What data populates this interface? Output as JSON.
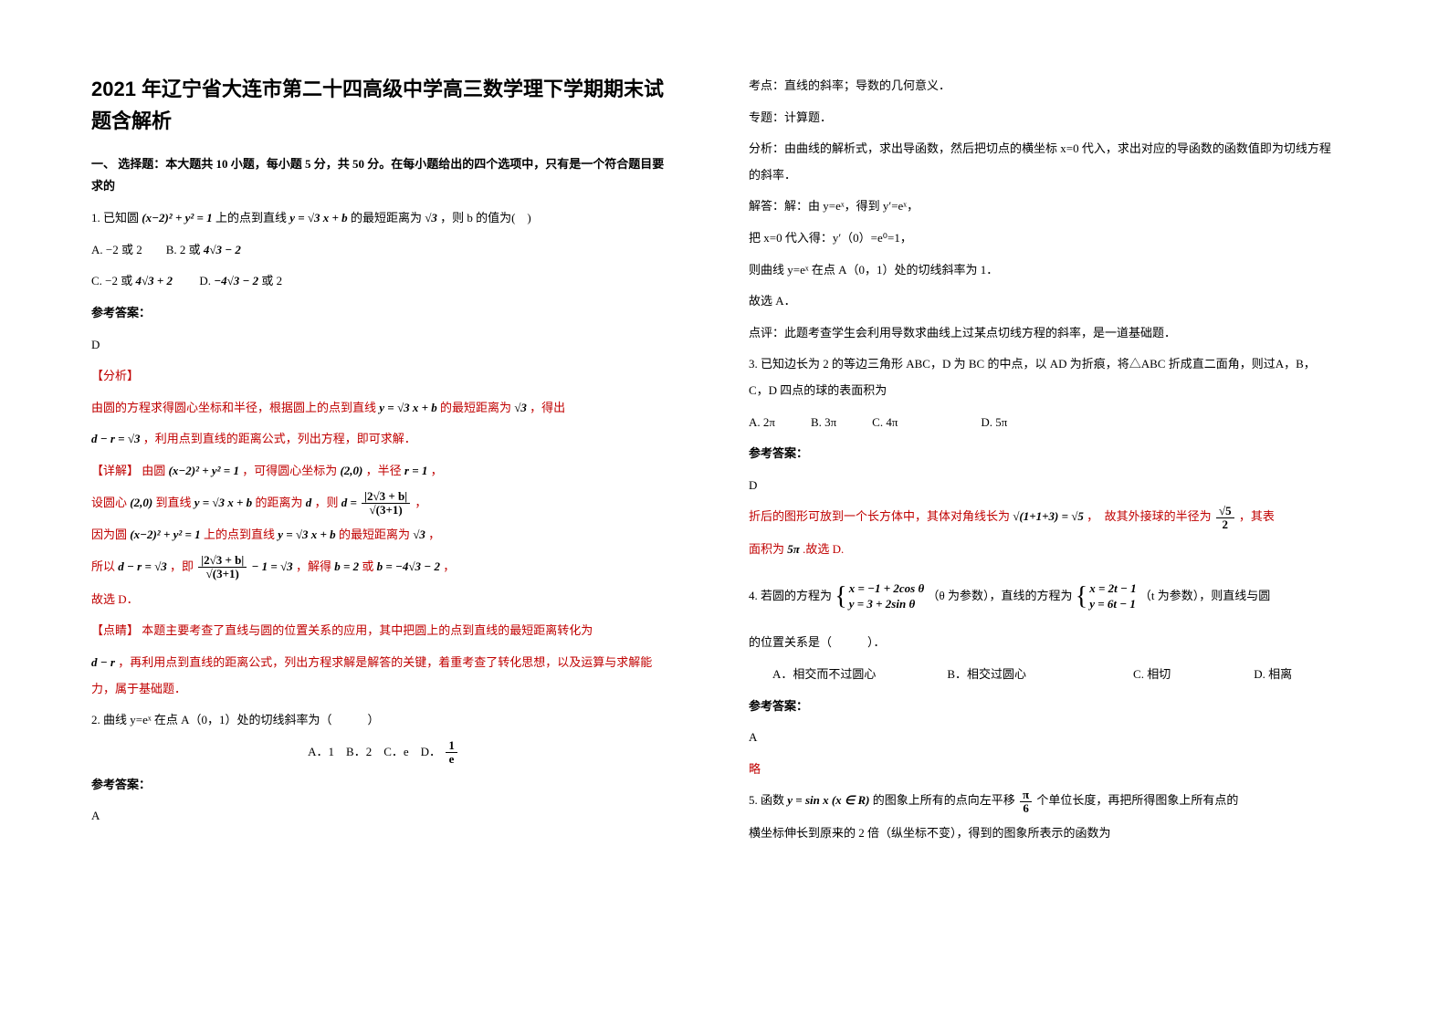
{
  "title": "2021 年辽宁省大连市第二十四高级中学高三数学理下学期期末试题含解析",
  "section1_head": "一、 选择题：本大题共 10 小题，每小题 5 分，共 50 分。在每小题给出的四个选项中，只有是一个符合题目要求的",
  "q1": {
    "stem_a": "1. 已知圆",
    "eq1": "(x−2)² + y² = 1",
    "stem_b": "上的点到直线",
    "eq2": "y = √3 x + b",
    "stem_c": "的最短距离为",
    "eq3": "√3",
    "stem_d": "，则 b 的值为(　)",
    "optA": "A. −2 或 2　　B. 2 或",
    "optA_eq": "4√3 − 2",
    "optC": "C. −2 或",
    "optC_eq": "4√3 + 2",
    "optD": "　　D.",
    "optD_eq": "−4√3 − 2",
    "optD_tail": " 或 2",
    "ans_label": "参考答案：",
    "ans": "D",
    "analysis_label": "【分析】",
    "ana_a": "由圆的方程求得圆心坐标和半径，根据圆上的点到直线",
    "ana_eq1": "y = √3 x + b",
    "ana_b": "的最短距离为",
    "ana_eq2": "√3",
    "ana_c": "，得出",
    "ana_eq3": "d − r = √3",
    "ana_d": "，利用点到直线的距离公式，列出方程，即可求解．",
    "detail_label": "【详解】",
    "det_a": "由圆",
    "det_eq1": "(x−2)² + y² = 1",
    "det_b": "，可得圆心坐标为",
    "det_eq2": "(2,0)",
    "det_c": "，半径",
    "det_eq3": "r = 1",
    "det_d": "，",
    "line2_a": "设圆心",
    "line2_eq1": "(2,0)",
    "line2_b": "到直线",
    "line2_eq2": "y = √3 x + b",
    "line2_c": "的距离为",
    "line2_eq3": "d",
    "line2_d": "，则",
    "frac1_num": "|2√3 + b|",
    "frac1_den": "√(3+1)",
    "line2_e": "，",
    "line3_a": "因为圆",
    "line3_b": "上的点到直线",
    "line3_c": "的最短距离为",
    "line3_d": "，",
    "line4_a": "所以",
    "line4_eq1": "d − r = √3",
    "line4_b": "，即",
    "frac2_num": "|2√3 + b|",
    "frac2_den": "√(3+1)",
    "line4_eq2": " − 1 = √3",
    "line4_c": "，解得",
    "line4_eq3": "b = 2",
    "line4_d": "或",
    "line4_eq4": "b = −4√3 − 2",
    "line4_e": "，",
    "line5": "故选 D．",
    "tip_label": "【点睛】",
    "tip_a": "本题主要考查了直线与圆的位置关系的应用，其中把圆上的点到直线的最短距离转化为",
    "tip_eq": "d − r",
    "tip_b": "，再利用点到直线的距离公式，列出方程求解是解答的关键，着重考查了转化思想，以及运算与求解能力，属于基础题．"
  },
  "q2": {
    "stem": "2. 曲线 y=eˣ 在点 A（0，1）处的切线斜率为（　　　）",
    "opts": "A．1　B．2　C．e　D．",
    "optD_num": "1",
    "optD_den": "e",
    "ans_label": "参考答案：",
    "ans": "A",
    "kd": "考点：直线的斜率；导数的几何意义．",
    "zt": "专题：计算题．",
    "fx": "分析：由曲线的解析式，求出导函数，然后把切点的横坐标 x=0 代入，求出对应的导函数的函数值即为切线方程的斜率．",
    "jd1": "解答：解：由 y=eˣ，得到 y′=eˣ，",
    "jd2": "把 x=0 代入得：y′（0）=e⁰=1，",
    "jd3": "则曲线 y=eˣ 在点 A（0，1）处的切线斜率为 1．",
    "jd4": "故选 A．",
    "dp": "点评：此题考查学生会利用导数求曲线上过某点切线方程的斜率，是一道基础题．"
  },
  "q3": {
    "stem": "3. 已知边长为 2 的等边三角形 ABC，D 为 BC 的中点，以 AD 为折痕，将△ABC 折成直二面角，则过A，B，C，D 四点的球的表面积为",
    "opts": "A. 2π　　　B. 3π　　　C. 4π　　　　　　　D. 5π",
    "ans_label": "参考答案：",
    "ans": "D",
    "exp_a": "折后的图形可放到一个长方体中，其体对角线长为",
    "exp_eq1": "√(1+1+3) = √5",
    "exp_b": "，　故其外接球的半径为",
    "exp_frac_num": "√5",
    "exp_frac_den": "2",
    "exp_c": "，其表",
    "exp_d": "面积为",
    "exp_eq2": "5π",
    "exp_e": " .故选 D."
  },
  "q4": {
    "stem_a": "4. 若圆的方程为",
    "brace1_r1": "x = −1 + 2cos θ",
    "brace1_r2": "y = 3 + 2sin θ",
    "stem_b": "（θ 为参数），直线的方程为",
    "brace2_r1": "x = 2t − 1",
    "brace2_r2": "y = 6t − 1",
    "stem_c": "（t 为参数），则直线与圆",
    "stem_d": "的位置关系是（　　　）．",
    "opts": "　　A．相交而不过圆心　　　　　　B．相交过圆心　　　　　　　　　C. 相切　　　　　　　D. 相离",
    "ans_label": "参考答案：",
    "ans": "A",
    "lue": "略"
  },
  "q5": {
    "stem_a": "5. 函数",
    "eq1": "y = sin x (x ∈ R)",
    "stem_b": "的图象上所有的点向左平移",
    "frac_num": "π",
    "frac_den": "6",
    "stem_c": "个单位长度，再把所得图象上所有点的",
    "stem_d": "横坐标伸长到原来的 2 倍（纵坐标不变），得到的图象所表示的函数为"
  }
}
